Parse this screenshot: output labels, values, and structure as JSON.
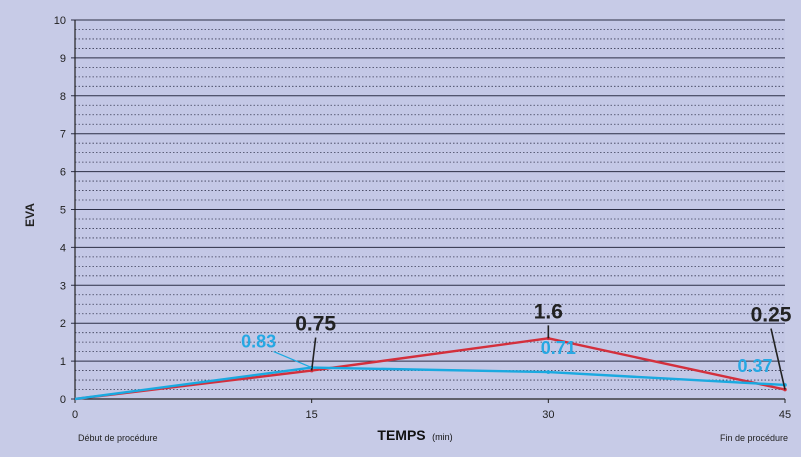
{
  "chart_data": {
    "type": "line",
    "title": "",
    "xlabel": "TEMPS",
    "xlabel_unit": "(min)",
    "ylabel": "EVA",
    "x": [
      0,
      15,
      30,
      45
    ],
    "x_tick_labels": [
      "0",
      "15",
      "30",
      "45"
    ],
    "y_tick_labels": [
      "0",
      "1",
      "2",
      "3",
      "4",
      "5",
      "6",
      "7",
      "8",
      "9",
      "10"
    ],
    "xlim": [
      0,
      45
    ],
    "ylim": [
      0,
      10
    ],
    "grid": true,
    "x_start_label": "Début de procédure",
    "x_end_label": "Fin de procédure",
    "series": [
      {
        "name": "",
        "color": "#d32f3c",
        "values": [
          0,
          0.75,
          1.6,
          0.25
        ],
        "labels": [
          "",
          "0.75",
          "1.6",
          "0.25"
        ],
        "label_color": "#222222"
      },
      {
        "name": "",
        "color": "#1aa9e0",
        "values": [
          0,
          0.83,
          0.71,
          0.37
        ],
        "labels": [
          "",
          "0.83",
          "0.71",
          "0.37"
        ],
        "label_color": "#26a8e3"
      }
    ]
  }
}
